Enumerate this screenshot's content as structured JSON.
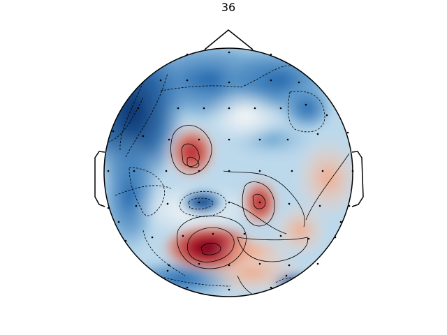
{
  "chart_data": {
    "type": "heatmap",
    "subtype": "eeg-topomap",
    "title": "36",
    "colormap": "RdBu_r",
    "colors": {
      "negative_max": "#08306b",
      "negative": "#2166ac",
      "neutral": "#f7f7f7",
      "positive": "#d6604d",
      "positive_max": "#67001f",
      "outline": "#000000",
      "sensor": "#000000"
    },
    "contours": true,
    "sensors_shown": true,
    "sensor_count": 64,
    "head_outline": true,
    "nose": true,
    "ears": true
  }
}
